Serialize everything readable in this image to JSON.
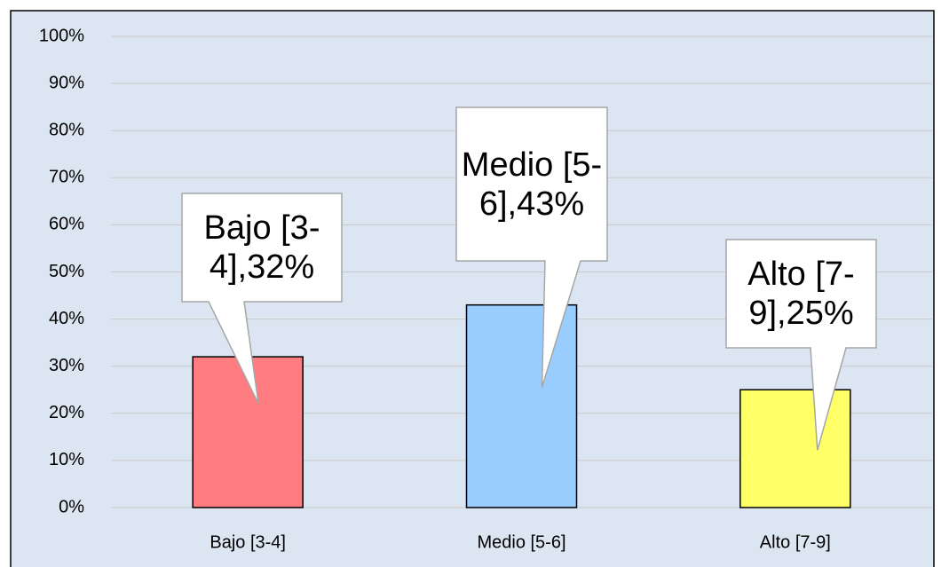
{
  "chart_data": {
    "type": "bar",
    "categories": [
      "Bajo [3-4]",
      "Medio [5-6]",
      "Alto [7-9]"
    ],
    "values": [
      32,
      43,
      25
    ],
    "value_labels": [
      "Bajo [3-4],32%",
      "Medio [5-6],43%",
      "Alto [7-9],25%"
    ],
    "colors": [
      "#ff7c80",
      "#99ccff",
      "#ffff66"
    ],
    "ylim": [
      0,
      100
    ],
    "yticks": [
      {
        "value": 0,
        "label": "0%"
      },
      {
        "value": 10,
        "label": "10%"
      },
      {
        "value": 20,
        "label": "20%"
      },
      {
        "value": 30,
        "label": "30%"
      },
      {
        "value": 40,
        "label": "40%"
      },
      {
        "value": 50,
        "label": "50%"
      },
      {
        "value": 60,
        "label": "60%"
      },
      {
        "value": 70,
        "label": "70%"
      },
      {
        "value": 80,
        "label": "80%"
      },
      {
        "value": 90,
        "label": "90%"
      },
      {
        "value": 100,
        "label": "100%"
      }
    ],
    "grid": true
  }
}
